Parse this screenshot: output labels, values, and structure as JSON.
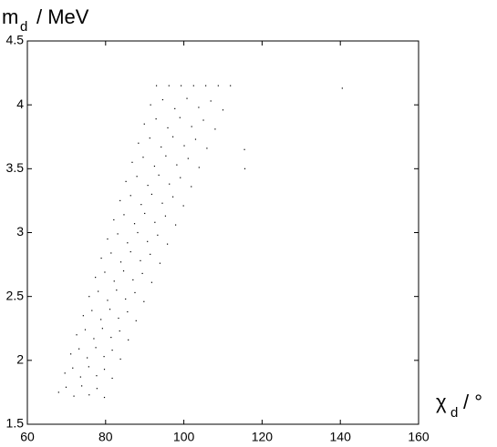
{
  "chart_data": {
    "type": "scatter",
    "x_label": {
      "symbol": "χ",
      "subscript": "d",
      "unit": "/ °"
    },
    "y_label": {
      "symbol": "m",
      "subscript": "d",
      "unit": "/ MeV"
    },
    "color": "#000000",
    "xlim": [
      60,
      160
    ],
    "xticks": [
      60,
      80,
      100,
      120,
      140,
      160
    ],
    "ylim": [
      1.5,
      4.5
    ],
    "yticks": [
      1.5,
      2,
      2.5,
      3,
      3.5,
      4,
      4.5
    ],
    "x": [
      68.0,
      69.9,
      71.9,
      73.9,
      75.8,
      77.8,
      79.7,
      69.6,
      71.6,
      73.6,
      75.7,
      77.7,
      79.7,
      81.7,
      71.1,
      73.2,
      75.3,
      77.5,
      79.6,
      81.7,
      83.8,
      72.6,
      74.8,
      77.0,
      79.2,
      81.4,
      83.6,
      85.8,
      74.3,
      76.5,
      78.8,
      81.1,
      83.3,
      85.6,
      87.8,
      75.8,
      78.1,
      80.5,
      82.8,
      85.1,
      87.5,
      89.8,
      77.4,
      79.8,
      82.2,
      84.6,
      87.0,
      89.4,
      91.8,
      78.9,
      81.4,
      83.9,
      86.4,
      88.9,
      91.4,
      93.9,
      80.5,
      83.1,
      85.6,
      88.2,
      90.7,
      93.3,
      95.8,
      82.1,
      84.7,
      87.4,
      90.0,
      92.6,
      95.3,
      97.9,
      83.7,
      86.4,
      89.1,
      91.8,
      94.5,
      97.2,
      99.9,
      85.2,
      88.0,
      90.8,
      93.6,
      96.3,
      99.1,
      101.9,
      86.8,
      89.6,
      92.5,
      95.4,
      98.2,
      101.1,
      103.9,
      88.4,
      91.3,
      94.2,
      97.2,
      100.1,
      103.0,
      105.9,
      89.9,
      92.9,
      95.9,
      99.0,
      102.0,
      105.0,
      108.0,
      91.5,
      94.6,
      97.7,
      100.8,
      103.8,
      106.9,
      110.0,
      93.0,
      96.2,
      99.3,
      102.5,
      105.6,
      108.8,
      111.9,
      115.5,
      115.6,
      140.5
    ],
    "values": [
      1.75,
      1.79,
      1.72,
      1.8,
      1.73,
      1.78,
      1.71,
      1.9,
      1.94,
      1.87,
      1.95,
      1.88,
      1.93,
      1.86,
      2.05,
      2.09,
      2.02,
      2.1,
      2.03,
      2.08,
      2.01,
      2.2,
      2.24,
      2.17,
      2.25,
      2.18,
      2.23,
      2.16,
      2.35,
      2.39,
      2.32,
      2.4,
      2.33,
      2.38,
      2.31,
      2.5,
      2.54,
      2.47,
      2.55,
      2.48,
      2.53,
      2.46,
      2.65,
      2.69,
      2.62,
      2.7,
      2.63,
      2.68,
      2.61,
      2.8,
      2.84,
      2.77,
      2.85,
      2.78,
      2.83,
      2.76,
      2.95,
      2.99,
      2.92,
      3.0,
      2.93,
      2.98,
      2.91,
      3.1,
      3.14,
      3.07,
      3.15,
      3.08,
      3.13,
      3.06,
      3.25,
      3.29,
      3.22,
      3.3,
      3.23,
      3.28,
      3.21,
      3.4,
      3.44,
      3.37,
      3.45,
      3.38,
      3.43,
      3.36,
      3.55,
      3.59,
      3.52,
      3.6,
      3.53,
      3.58,
      3.51,
      3.7,
      3.74,
      3.67,
      3.75,
      3.68,
      3.73,
      3.66,
      3.85,
      3.89,
      3.82,
      3.9,
      3.83,
      3.88,
      3.81,
      4.0,
      4.04,
      3.97,
      4.05,
      3.98,
      4.03,
      3.96,
      4.15,
      4.15,
      4.15,
      4.15,
      4.15,
      4.15,
      4.15,
      3.65,
      3.5,
      4.13
    ]
  }
}
